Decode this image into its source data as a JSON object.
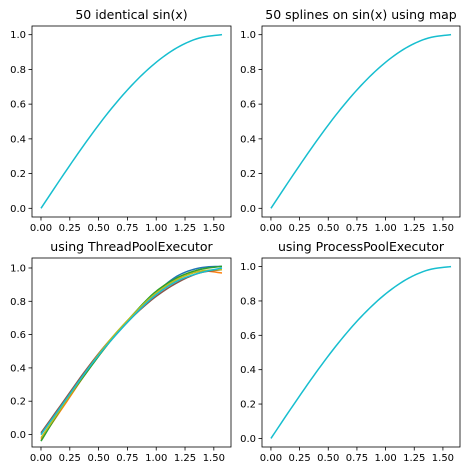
{
  "chart_data": [
    {
      "type": "line",
      "title": "50 identical sin(x)",
      "xlabel": "",
      "ylabel": "",
      "xlim": [
        -0.078,
        1.649
      ],
      "ylim": [
        -0.05,
        1.05
      ],
      "xticks": [
        0.0,
        0.25,
        0.5,
        0.75,
        1.0,
        1.25,
        1.5
      ],
      "xtick_labels": [
        "0.00",
        "0.25",
        "0.50",
        "0.75",
        "1.00",
        "1.25",
        "1.50"
      ],
      "yticks": [
        0.0,
        0.2,
        0.4,
        0.6,
        0.8,
        1.0
      ],
      "ytick_labels": [
        "0.0",
        "0.2",
        "0.4",
        "0.6",
        "0.8",
        "1.0"
      ],
      "series": [
        {
          "color": "#17becf",
          "x": [
            0.0,
            0.1963,
            0.3927,
            0.589,
            0.7854,
            0.9817,
            1.1781,
            1.3744,
            1.5708
          ],
          "y": [
            0.0,
            0.195,
            0.383,
            0.556,
            0.707,
            0.831,
            0.924,
            0.981,
            1.0
          ]
        }
      ]
    },
    {
      "type": "line",
      "title": "50 splines on sin(x) using map",
      "xlabel": "",
      "ylabel": "",
      "xlim": [
        -0.078,
        1.649
      ],
      "ylim": [
        -0.05,
        1.05
      ],
      "xticks": [
        0.0,
        0.25,
        0.5,
        0.75,
        1.0,
        1.25,
        1.5
      ],
      "xtick_labels": [
        "0.00",
        "0.25",
        "0.50",
        "0.75",
        "1.00",
        "1.25",
        "1.50"
      ],
      "yticks": [
        0.0,
        0.2,
        0.4,
        0.6,
        0.8,
        1.0
      ],
      "ytick_labels": [
        "0.0",
        "0.2",
        "0.4",
        "0.6",
        "0.8",
        "1.0"
      ],
      "series": [
        {
          "color": "#17becf",
          "x": [
            0.0,
            0.1963,
            0.3927,
            0.589,
            0.7854,
            0.9817,
            1.1781,
            1.3744,
            1.5708
          ],
          "y": [
            0.0,
            0.195,
            0.383,
            0.556,
            0.707,
            0.831,
            0.924,
            0.981,
            1.0
          ]
        }
      ]
    },
    {
      "type": "line",
      "title": "using ThreadPoolExecutor",
      "xlabel": "",
      "ylabel": "",
      "xlim": [
        -0.078,
        1.649
      ],
      "ylim": [
        -0.075,
        1.06
      ],
      "xticks": [
        0.0,
        0.25,
        0.5,
        0.75,
        1.0,
        1.25,
        1.5
      ],
      "xtick_labels": [
        "0.00",
        "0.25",
        "0.50",
        "0.75",
        "1.00",
        "1.25",
        "1.50"
      ],
      "yticks": [
        0.0,
        0.2,
        0.4,
        0.6,
        0.8,
        1.0
      ],
      "ytick_labels": [
        "0.0",
        "0.2",
        "0.4",
        "0.6",
        "0.8",
        "1.0"
      ],
      "series": [
        {
          "color": "#1f77b4",
          "x": [
            0.0,
            0.1963,
            0.3927,
            0.589,
            0.7854,
            0.9817,
            1.1781,
            1.3744,
            1.5708
          ],
          "y": [
            0.0,
            0.195,
            0.38,
            0.55,
            0.7,
            0.84,
            0.95,
            1.0,
            1.01
          ]
        },
        {
          "color": "#ff7f0e",
          "x": [
            0.0,
            0.1963,
            0.3927,
            0.589,
            0.7854,
            0.9817,
            1.1781,
            1.3744,
            1.5708
          ],
          "y": [
            -0.03,
            0.17,
            0.37,
            0.55,
            0.71,
            0.84,
            0.93,
            0.98,
            0.97
          ]
        },
        {
          "color": "#2ca02c",
          "x": [
            0.0,
            0.1963,
            0.3927,
            0.589,
            0.7854,
            0.9817,
            1.1781,
            1.3744,
            1.5708
          ],
          "y": [
            -0.04,
            0.18,
            0.37,
            0.55,
            0.71,
            0.85,
            0.94,
            0.99,
            1.01
          ]
        },
        {
          "color": "#8c564b",
          "x": [
            0.0,
            0.1963,
            0.3927,
            0.589,
            0.7854,
            0.9817,
            1.1781,
            1.3744,
            1.5708
          ],
          "y": [
            0.01,
            0.2,
            0.39,
            0.56,
            0.7,
            0.82,
            0.91,
            0.97,
            0.99
          ]
        },
        {
          "color": "#bcbd22",
          "x": [
            0.0,
            0.1963,
            0.3927,
            0.589,
            0.7854,
            0.9817,
            1.1781,
            1.3744,
            1.5708
          ],
          "y": [
            -0.02,
            0.18,
            0.38,
            0.56,
            0.71,
            0.84,
            0.93,
            0.98,
            0.99
          ]
        },
        {
          "color": "#17becf",
          "x": [
            0.0,
            0.1963,
            0.3927,
            0.589,
            0.7854,
            0.9817,
            1.1781,
            1.3744,
            1.5708
          ],
          "y": [
            0.0,
            0.19,
            0.38,
            0.55,
            0.7,
            0.83,
            0.92,
            0.97,
            1.0
          ]
        }
      ]
    },
    {
      "type": "line",
      "title": "using ProcessPoolExecutor",
      "xlabel": "",
      "ylabel": "",
      "xlim": [
        -0.078,
        1.649
      ],
      "ylim": [
        -0.05,
        1.05
      ],
      "xticks": [
        0.0,
        0.25,
        0.5,
        0.75,
        1.0,
        1.25,
        1.5
      ],
      "xtick_labels": [
        "0.00",
        "0.25",
        "0.50",
        "0.75",
        "1.00",
        "1.25",
        "1.50"
      ],
      "yticks": [
        0.0,
        0.2,
        0.4,
        0.6,
        0.8,
        1.0
      ],
      "ytick_labels": [
        "0.0",
        "0.2",
        "0.4",
        "0.6",
        "0.8",
        "1.0"
      ],
      "series": [
        {
          "color": "#17becf",
          "x": [
            0.0,
            0.1963,
            0.3927,
            0.589,
            0.7854,
            0.9817,
            1.1781,
            1.3744,
            1.5708
          ],
          "y": [
            0.0,
            0.195,
            0.383,
            0.556,
            0.707,
            0.831,
            0.924,
            0.981,
            1.0
          ]
        }
      ]
    }
  ]
}
